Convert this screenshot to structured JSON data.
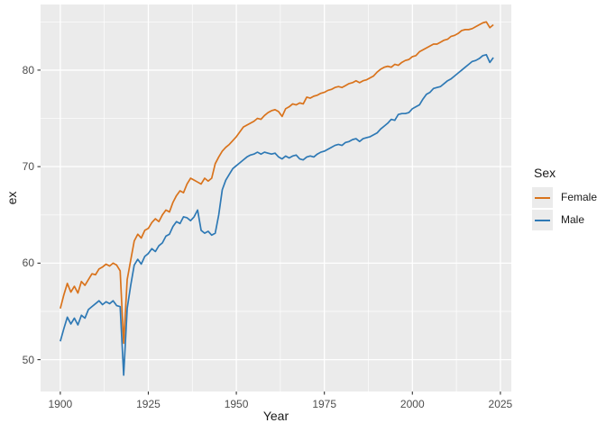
{
  "chart_data": {
    "type": "line",
    "xlabel": "Year",
    "ylabel": "ex",
    "x_domain": [
      1894.4,
      2028.1
    ],
    "y_domain": [
      46.7,
      86.8
    ],
    "x_ticks": [
      1900,
      1925,
      1950,
      1975,
      2000,
      2025
    ],
    "x_minor_ticks": [
      1912.5,
      1937.5,
      1962.5,
      1987.5,
      2012.5
    ],
    "y_ticks": [
      50,
      60,
      70,
      80
    ],
    "y_minor_ticks": [
      55,
      65,
      75,
      85
    ],
    "grid": true,
    "legend_position": "right",
    "x_start": 1900,
    "x_end": 2023,
    "series": [
      {
        "name": "Female",
        "color": "#D9731C",
        "values": [
          55.3,
          56.7,
          57.9,
          57.0,
          57.6,
          56.9,
          58.1,
          57.7,
          58.3,
          58.9,
          58.8,
          59.4,
          59.6,
          59.9,
          59.7,
          60.0,
          59.8,
          59.2,
          51.7,
          58.3,
          60.3,
          62.3,
          63.0,
          62.6,
          63.4,
          63.6,
          64.2,
          64.6,
          64.3,
          65.0,
          65.5,
          65.3,
          66.3,
          67.0,
          67.5,
          67.3,
          68.2,
          68.8,
          68.6,
          68.4,
          68.2,
          68.8,
          68.5,
          68.8,
          70.3,
          71.0,
          71.6,
          72.0,
          72.3,
          72.7,
          73.1,
          73.6,
          74.1,
          74.3,
          74.5,
          74.7,
          75.0,
          74.9,
          75.3,
          75.6,
          75.8,
          75.9,
          75.7,
          75.2,
          76.0,
          76.2,
          76.5,
          76.4,
          76.6,
          76.5,
          77.2,
          77.1,
          77.3,
          77.4,
          77.6,
          77.7,
          77.9,
          78.0,
          78.2,
          78.3,
          78.2,
          78.4,
          78.6,
          78.7,
          78.9,
          78.7,
          78.9,
          79.0,
          79.2,
          79.4,
          79.8,
          80.1,
          80.3,
          80.4,
          80.3,
          80.6,
          80.5,
          80.8,
          81.0,
          81.1,
          81.4,
          81.5,
          81.9,
          82.1,
          82.3,
          82.5,
          82.7,
          82.7,
          82.9,
          83.1,
          83.2,
          83.5,
          83.6,
          83.8,
          84.1,
          84.2,
          84.2,
          84.3,
          84.5,
          84.7,
          84.9,
          85.0,
          84.4,
          84.7
        ]
      },
      {
        "name": "Male",
        "color": "#2E79B5",
        "values": [
          51.9,
          53.2,
          54.4,
          53.7,
          54.3,
          53.6,
          54.6,
          54.3,
          55.2,
          55.5,
          55.8,
          56.1,
          55.7,
          56.0,
          55.8,
          56.1,
          55.6,
          55.5,
          48.4,
          55.3,
          57.7,
          59.8,
          60.4,
          59.9,
          60.7,
          61.0,
          61.5,
          61.2,
          61.8,
          62.1,
          62.8,
          63.0,
          63.8,
          64.3,
          64.1,
          64.8,
          64.7,
          64.4,
          64.8,
          65.5,
          63.4,
          63.1,
          63.3,
          62.9,
          63.1,
          65.0,
          67.6,
          68.6,
          69.2,
          69.8,
          70.1,
          70.4,
          70.7,
          71.0,
          71.2,
          71.3,
          71.5,
          71.3,
          71.5,
          71.4,
          71.3,
          71.4,
          71.0,
          70.8,
          71.1,
          70.9,
          71.1,
          71.2,
          70.8,
          70.7,
          71.0,
          71.1,
          71.0,
          71.3,
          71.5,
          71.6,
          71.8,
          72.0,
          72.2,
          72.3,
          72.2,
          72.5,
          72.6,
          72.8,
          72.9,
          72.6,
          72.9,
          73.0,
          73.1,
          73.3,
          73.5,
          73.9,
          74.2,
          74.5,
          74.9,
          74.8,
          75.4,
          75.5,
          75.5,
          75.6,
          76.0,
          76.2,
          76.4,
          77.0,
          77.5,
          77.7,
          78.1,
          78.2,
          78.3,
          78.6,
          78.9,
          79.1,
          79.4,
          79.7,
          80.0,
          80.3,
          80.6,
          80.9,
          81.0,
          81.2,
          81.5,
          81.6,
          80.8,
          81.3
        ]
      }
    ]
  },
  "legend": {
    "title": "Sex",
    "items": [
      {
        "label": "Female",
        "color": "#D9731C"
      },
      {
        "label": "Male",
        "color": "#2E79B5"
      }
    ]
  },
  "style": {
    "figure_bg": "#FFFFFF",
    "panel_bg": "#EBEBEB",
    "grid_major": "#FFFFFF",
    "grid_minor": "#FFFFFF",
    "axis_tick_color": "#333333",
    "tick_label_color": "#4D4D4D",
    "title_color": "#1A1A1A",
    "legend_key_bg": "#EBEBEB"
  }
}
